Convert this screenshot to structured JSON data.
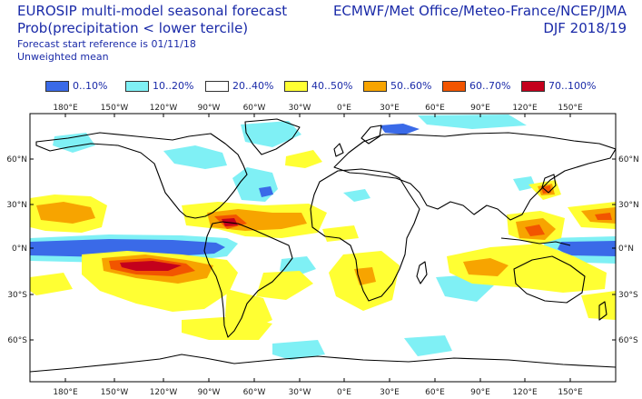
{
  "header": {
    "title": "EUROSIP multi-model seasonal forecast",
    "subtitle": "Prob(precipitation < lower tercile)",
    "start_ref": "Forecast start reference is 01/11/18",
    "weighting": "Unweighted mean",
    "centres": "ECMWF/Met Office/Meteo-France/NCEP/JMA",
    "season": "DJF 2018/19"
  },
  "legend": [
    {
      "label": "0..10%",
      "color": "#3a6ae8"
    },
    {
      "label": "10..20%",
      "color": "#7ff0f5"
    },
    {
      "label": "20..40%",
      "color": "#ffffff"
    },
    {
      "label": "40..50%",
      "color": "#ffff33"
    },
    {
      "label": "50..60%",
      "color": "#f7a400"
    },
    {
      "label": "60..70%",
      "color": "#f25500"
    },
    {
      "label": "70..100%",
      "color": "#c4001c"
    }
  ],
  "map": {
    "lon_labels": [
      "180°E",
      "150°W",
      "120°W",
      "90°W",
      "60°W",
      "30°W",
      "0°E",
      "30°E",
      "60°E",
      "90°E",
      "120°E",
      "150°E"
    ],
    "lat_labels": [
      "60°N",
      "30°N",
      "0°N",
      "30°S",
      "60°S"
    ]
  }
}
